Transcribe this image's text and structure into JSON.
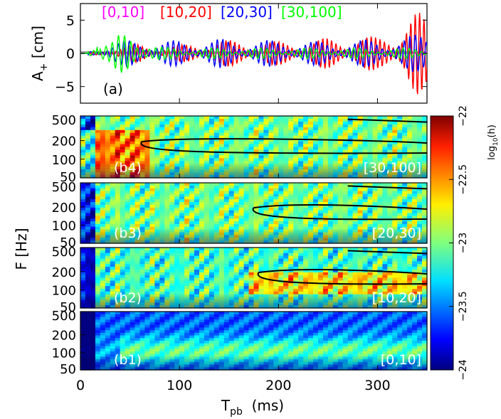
{
  "chart_data": [
    {
      "type": "line",
      "panel_label": "(a)",
      "ylabel_main": "A",
      "ylabel_sub": "+",
      "ylabel_unit": "[cm]",
      "xlim": [
        0,
        350
      ],
      "ylim": [
        -7.5,
        7.5
      ],
      "yticks": [
        "5",
        "0",
        "−5"
      ],
      "series": [
        {
          "name": "[0,10]",
          "color": "#ff00ff",
          "points": [
            [
              0,
              0
            ],
            [
              20,
              0.2
            ],
            [
              40,
              0.4
            ],
            [
              60,
              0.3
            ],
            [
              80,
              0.2
            ],
            [
              100,
              0.2
            ],
            [
              120,
              0.2
            ],
            [
              140,
              0.2
            ],
            [
              160,
              0.3
            ],
            [
              180,
              0.2
            ],
            [
              200,
              0.2
            ],
            [
              220,
              0.2
            ],
            [
              240,
              0.2
            ],
            [
              260,
              0.2
            ],
            [
              280,
              0.2
            ],
            [
              300,
              0.2
            ],
            [
              320,
              0.2
            ],
            [
              340,
              0.2
            ],
            [
              350,
              0.2
            ]
          ]
        },
        {
          "name": "[10,20]",
          "color": "#ff0000",
          "points": [
            [
              0,
              0
            ],
            [
              20,
              0.5
            ],
            [
              40,
              1.0
            ],
            [
              60,
              1.5
            ],
            [
              80,
              1.0
            ],
            [
              100,
              1.2
            ],
            [
              120,
              1.8
            ],
            [
              140,
              2.0
            ],
            [
              160,
              2.0
            ],
            [
              180,
              2.0
            ],
            [
              200,
              1.8
            ],
            [
              220,
              2.0
            ],
            [
              240,
              2.2
            ],
            [
              260,
              2.5
            ],
            [
              280,
              2.8
            ],
            [
              300,
              2.5
            ],
            [
              320,
              4.0
            ],
            [
              330,
              6.0
            ],
            [
              340,
              6.5
            ],
            [
              350,
              5.0
            ]
          ]
        },
        {
          "name": "[20,30]",
          "color": "#0000ff",
          "points": [
            [
              0,
              0
            ],
            [
              20,
              1.0
            ],
            [
              40,
              1.8
            ],
            [
              60,
              2.2
            ],
            [
              80,
              1.8
            ],
            [
              100,
              2.0
            ],
            [
              120,
              2.0
            ],
            [
              140,
              2.2
            ],
            [
              160,
              2.0
            ],
            [
              180,
              2.0
            ],
            [
              200,
              2.0
            ],
            [
              220,
              2.0
            ],
            [
              240,
              1.8
            ],
            [
              260,
              1.8
            ],
            [
              280,
              2.0
            ],
            [
              300,
              2.2
            ],
            [
              320,
              2.0
            ],
            [
              340,
              3.0
            ],
            [
              350,
              3.5
            ]
          ]
        },
        {
          "name": "[30,100]",
          "color": "#00ff00",
          "points": [
            [
              0,
              0
            ],
            [
              15,
              2.5
            ],
            [
              17,
              -4.5
            ],
            [
              20,
              2.0
            ],
            [
              30,
              1.5
            ],
            [
              40,
              3.0
            ],
            [
              50,
              3.5
            ],
            [
              60,
              3.0
            ],
            [
              70,
              1.5
            ],
            [
              80,
              1.0
            ],
            [
              100,
              0.8
            ],
            [
              120,
              0.8
            ],
            [
              150,
              0.8
            ],
            [
              200,
              0.8
            ],
            [
              250,
              0.8
            ],
            [
              300,
              0.8
            ],
            [
              350,
              0.8
            ]
          ]
        }
      ]
    },
    {
      "type": "heatmap",
      "ylabel": "F [Hz]",
      "xlabel_main": "T",
      "xlabel_sub": "pb",
      "xlabel_unit": "(ms)",
      "xlim": [
        0,
        350
      ],
      "ylim": [
        50,
        500
      ],
      "yscale": "log",
      "xticks": [
        "0",
        "100",
        "200",
        "300"
      ],
      "yticks": [
        "500",
        "200",
        "100",
        "50"
      ],
      "colorscale": "jet",
      "panels": [
        {
          "label": "(b4)",
          "band": "[30,100]",
          "level": 0.55
        },
        {
          "label": "(b3)",
          "band": "[20,30]",
          "level": 0.55
        },
        {
          "label": "(b2)",
          "band": "[10,20]",
          "level": 0.5
        },
        {
          "label": "(b1)",
          "band": "[0,10]",
          "level": 0.25
        }
      ],
      "colorbar": {
        "label_main": "log",
        "label_sub": "10",
        "label_tail": "(h)",
        "range": [
          -24,
          -22
        ],
        "ticks": [
          "−22",
          "−22.5",
          "−23",
          "−23.5",
          "−24"
        ]
      }
    }
  ]
}
